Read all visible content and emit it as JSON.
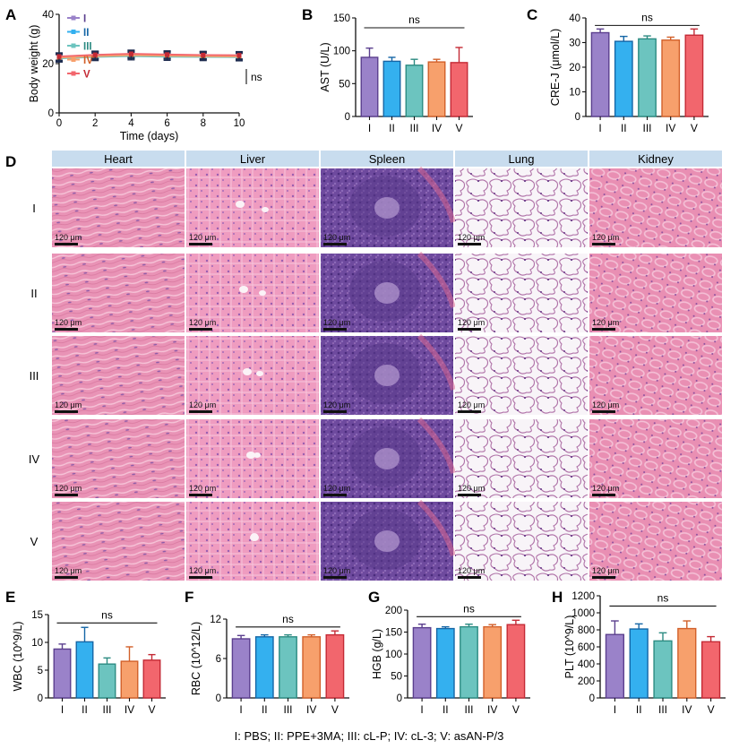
{
  "colors": {
    "I": "#9a82c9",
    "II": "#34b0ef",
    "III": "#6cc4bf",
    "IV": "#f7a06c",
    "V": "#f2666d",
    "stroke_I": "#5b3f8e",
    "stroke_II": "#1566a6",
    "stroke_III": "#2c8b82",
    "stroke_IV": "#d2602a",
    "stroke_V": "#c42a35",
    "tissue_header": "#c8dcee"
  },
  "footer": "I: PBS; II: PPE+3MA; III: cL-P; IV: cL-3; V: asAN-P/3",
  "histology": {
    "panel_label": "D",
    "tissues": [
      "Heart",
      "Liver",
      "Spleen",
      "Lung",
      "Kidney"
    ],
    "groups": [
      "I",
      "II",
      "III",
      "IV",
      "V"
    ],
    "scale_bar": "120 μm"
  },
  "chart_data": [
    {
      "panel": "A",
      "type": "line",
      "xlabel": "Time (days)",
      "ylabel": "Body weight (g)",
      "xlim": [
        0,
        10
      ],
      "ylim": [
        0,
        40
      ],
      "xticks": [
        0,
        2,
        4,
        6,
        8,
        10
      ],
      "yticks": [
        0,
        20,
        40
      ],
      "x": [
        0,
        2,
        4,
        6,
        8,
        10
      ],
      "series": [
        {
          "name": "I",
          "values": [
            22.8,
            23.5,
            23.9,
            23.6,
            23.4,
            23.3
          ]
        },
        {
          "name": "II",
          "values": [
            22.6,
            23.3,
            23.6,
            23.4,
            23.2,
            23.1
          ]
        },
        {
          "name": "III",
          "values": [
            22.1,
            22.7,
            23.0,
            22.8,
            22.7,
            22.6
          ]
        },
        {
          "name": "IV",
          "values": [
            22.4,
            23.0,
            23.4,
            23.2,
            23.0,
            22.9
          ]
        },
        {
          "name": "V",
          "values": [
            22.9,
            23.6,
            24.0,
            23.7,
            23.5,
            23.4
          ]
        }
      ],
      "error": 1.5,
      "annotation": "ns"
    },
    {
      "panel": "B",
      "type": "bar",
      "ylabel": "AST (U/L)",
      "categories": [
        "I",
        "II",
        "III",
        "IV",
        "V"
      ],
      "values": [
        90,
        84,
        78,
        83,
        82
      ],
      "errors": [
        14,
        6,
        9,
        4,
        23
      ],
      "ylim": [
        0,
        150
      ],
      "yticks": [
        0,
        50,
        100,
        150
      ],
      "annotation": "ns"
    },
    {
      "panel": "C",
      "type": "bar",
      "ylabel": "CRE-J (μmol/L)",
      "categories": [
        "I",
        "II",
        "III",
        "IV",
        "V"
      ],
      "values": [
        34,
        30.5,
        31.5,
        31,
        33
      ],
      "errors": [
        1.5,
        2,
        1.2,
        1.2,
        2.5
      ],
      "ylim": [
        0,
        40
      ],
      "yticks": [
        0,
        10,
        20,
        30,
        40
      ],
      "annotation": "ns"
    },
    {
      "panel": "E",
      "type": "bar",
      "ylabel": "WBC (10^9/L)",
      "categories": [
        "I",
        "II",
        "III",
        "IV",
        "V"
      ],
      "values": [
        8.8,
        10.1,
        6.1,
        6.6,
        6.8
      ],
      "errors": [
        0.9,
        2.6,
        1.1,
        2.6,
        1.0
      ],
      "ylim": [
        0,
        15
      ],
      "yticks": [
        0,
        5,
        10,
        15
      ],
      "annotation": "ns"
    },
    {
      "panel": "F",
      "type": "bar",
      "ylabel": "RBC (10^12/L)",
      "categories": [
        "I",
        "II",
        "III",
        "IV",
        "V"
      ],
      "values": [
        9.0,
        9.3,
        9.3,
        9.3,
        9.6
      ],
      "errors": [
        0.5,
        0.3,
        0.3,
        0.3,
        0.6
      ],
      "ylim": [
        0,
        12
      ],
      "yticks": [
        0,
        6,
        12
      ],
      "annotation": "ns"
    },
    {
      "panel": "G",
      "type": "bar",
      "ylabel": "HGB (g/L)",
      "categories": [
        "I",
        "II",
        "III",
        "IV",
        "V"
      ],
      "values": [
        160,
        158,
        162,
        162,
        167
      ],
      "errors": [
        8,
        4,
        6,
        5,
        10
      ],
      "ylim": [
        0,
        200
      ],
      "yticks": [
        0,
        50,
        100,
        150,
        200
      ],
      "annotation": "ns"
    },
    {
      "panel": "H",
      "type": "bar",
      "ylabel": "PLT (10^9/L)",
      "categories": [
        "I",
        "II",
        "III",
        "IV",
        "V"
      ],
      "values": [
        745,
        810,
        670,
        815,
        660
      ],
      "errors": [
        160,
        60,
        95,
        90,
        60
      ],
      "ylim": [
        0,
        1200
      ],
      "yticks": [
        0,
        200,
        400,
        600,
        800,
        1000,
        1200
      ],
      "annotation": "ns"
    }
  ]
}
